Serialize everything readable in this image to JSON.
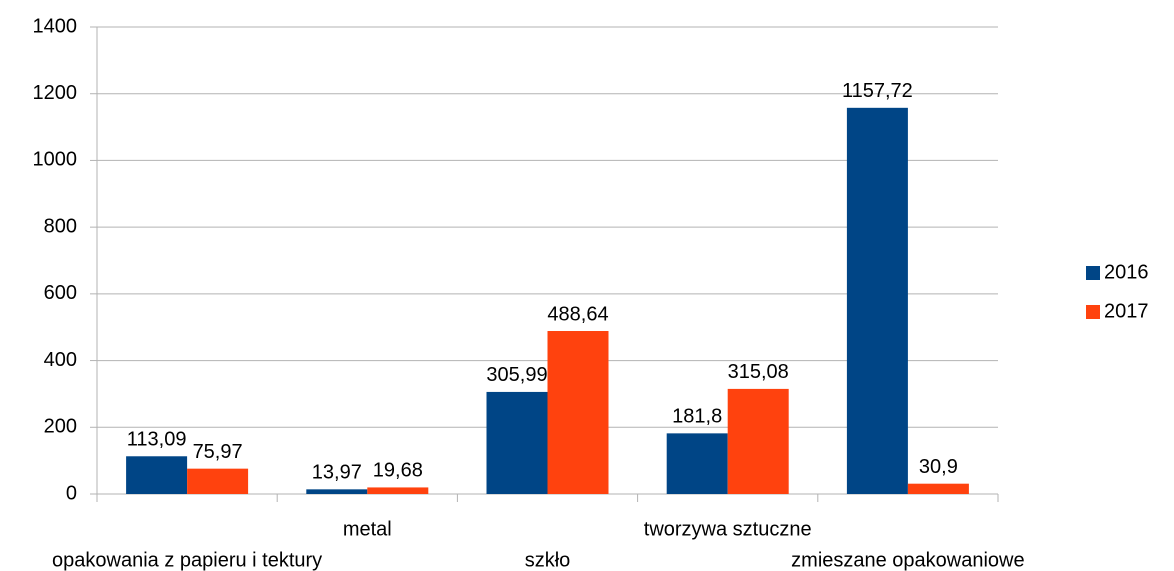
{
  "chart_data": {
    "type": "bar",
    "categories": [
      "opakowania z papieru i tektury",
      "metal",
      "szkło",
      "tworzywa sztuczne",
      "zmieszane opakowaniowe"
    ],
    "series": [
      {
        "name": "2016",
        "color": "#004586",
        "values": [
          113.09,
          13.97,
          305.99,
          181.8,
          1157.72
        ],
        "value_labels": [
          "113,09",
          "13,97",
          "305,99",
          "181,8",
          "1157,72"
        ]
      },
      {
        "name": "2017",
        "color": "#ff420e",
        "values": [
          75.97,
          19.68,
          488.64,
          315.08,
          30.9
        ],
        "value_labels": [
          "75,97",
          "19,68",
          "488,64",
          "315,08",
          "30,9"
        ]
      }
    ],
    "ylim": [
      0,
      1400
    ],
    "yticks": [
      0,
      200,
      400,
      600,
      800,
      1000,
      1200,
      1400
    ],
    "grid": true,
    "legend": "right"
  }
}
